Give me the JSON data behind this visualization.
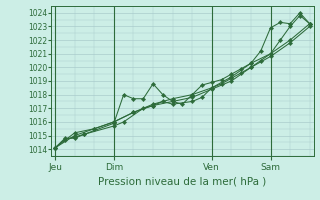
{
  "title": "Pression niveau de la mer( hPa )",
  "bg_color": "#cceee6",
  "grid_color": "#aacccc",
  "line_color": "#2d6b3a",
  "ylim": [
    1013.5,
    1024.5
  ],
  "yticks": [
    1014,
    1015,
    1016,
    1017,
    1018,
    1019,
    1020,
    1021,
    1022,
    1023,
    1024
  ],
  "xtick_labels": [
    "Jeu",
    "Dim",
    "Ven",
    "Sam"
  ],
  "xtick_positions": [
    0,
    30,
    80,
    110
  ],
  "vline_positions": [
    0,
    30,
    80,
    110
  ],
  "xlim": [
    -2,
    132
  ],
  "line1_x": [
    0,
    5,
    10,
    15,
    30,
    35,
    40,
    45,
    50,
    55,
    60,
    65,
    70,
    75,
    80,
    85,
    90,
    95,
    100,
    105,
    110,
    115,
    120,
    125,
    130
  ],
  "line1_y": [
    1014.1,
    1014.8,
    1014.8,
    1015.1,
    1015.9,
    1018.0,
    1017.7,
    1017.7,
    1018.8,
    1018.0,
    1017.5,
    1017.3,
    1018.0,
    1018.7,
    1018.9,
    1019.1,
    1019.5,
    1019.9,
    1020.3,
    1021.2,
    1022.9,
    1023.3,
    1023.2,
    1024.0,
    1023.2
  ],
  "line2_x": [
    0,
    5,
    10,
    15,
    30,
    35,
    45,
    50,
    55,
    60,
    70,
    75,
    80,
    85,
    90,
    95,
    100,
    105,
    110,
    115,
    120,
    125,
    130
  ],
  "line2_y": [
    1014.1,
    1014.7,
    1014.9,
    1015.1,
    1015.7,
    1016.0,
    1017.0,
    1017.2,
    1017.5,
    1017.3,
    1017.5,
    1017.8,
    1018.5,
    1018.8,
    1019.2,
    1019.6,
    1020.0,
    1020.5,
    1021.0,
    1022.0,
    1023.0,
    1023.8,
    1023.2
  ],
  "line3_x": [
    0,
    10,
    20,
    30,
    40,
    50,
    60,
    70,
    80,
    90,
    100,
    110,
    120,
    130
  ],
  "line3_y": [
    1014.1,
    1015.0,
    1015.5,
    1016.0,
    1016.7,
    1017.3,
    1017.7,
    1018.0,
    1018.5,
    1019.3,
    1020.3,
    1021.0,
    1022.0,
    1023.2
  ],
  "line4_x": [
    0,
    10,
    20,
    30,
    40,
    50,
    60,
    70,
    80,
    90,
    100,
    110,
    120,
    130
  ],
  "line4_y": [
    1014.1,
    1015.2,
    1015.5,
    1016.0,
    1016.7,
    1017.2,
    1017.5,
    1017.8,
    1018.4,
    1019.0,
    1020.0,
    1020.8,
    1021.8,
    1023.0
  ]
}
